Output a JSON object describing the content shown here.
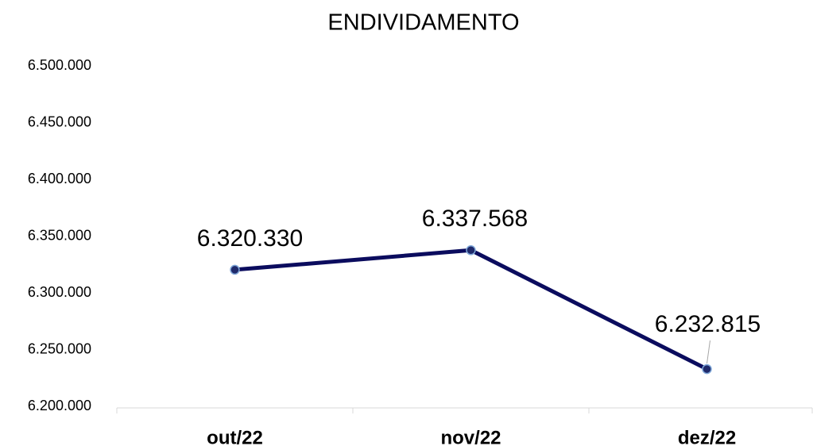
{
  "chart_data": {
    "type": "line",
    "title": "ENDIVIDAMENTO",
    "categories": [
      "out/22",
      "nov/22",
      "dez/22"
    ],
    "series": [
      {
        "name": "ENDIVIDAMENTO",
        "color": "#0b0c5e",
        "values": [
          6320330,
          6337568,
          6232815
        ],
        "value_labels": [
          "6.320.330",
          "6.337.568",
          "6.232.815"
        ]
      }
    ],
    "ylim": [
      6200000,
      6500000
    ],
    "yticks": [
      {
        "value": 6200000,
        "label": "6.200.000"
      },
      {
        "value": 6250000,
        "label": "6.250.000"
      },
      {
        "value": 6300000,
        "label": "6.300.000"
      },
      {
        "value": 6350000,
        "label": "6.350.000"
      },
      {
        "value": 6400000,
        "label": "6.400.000"
      },
      {
        "value": 6450000,
        "label": "6.450.000"
      },
      {
        "value": 6500000,
        "label": "6.500.000"
      }
    ],
    "grid": false
  }
}
